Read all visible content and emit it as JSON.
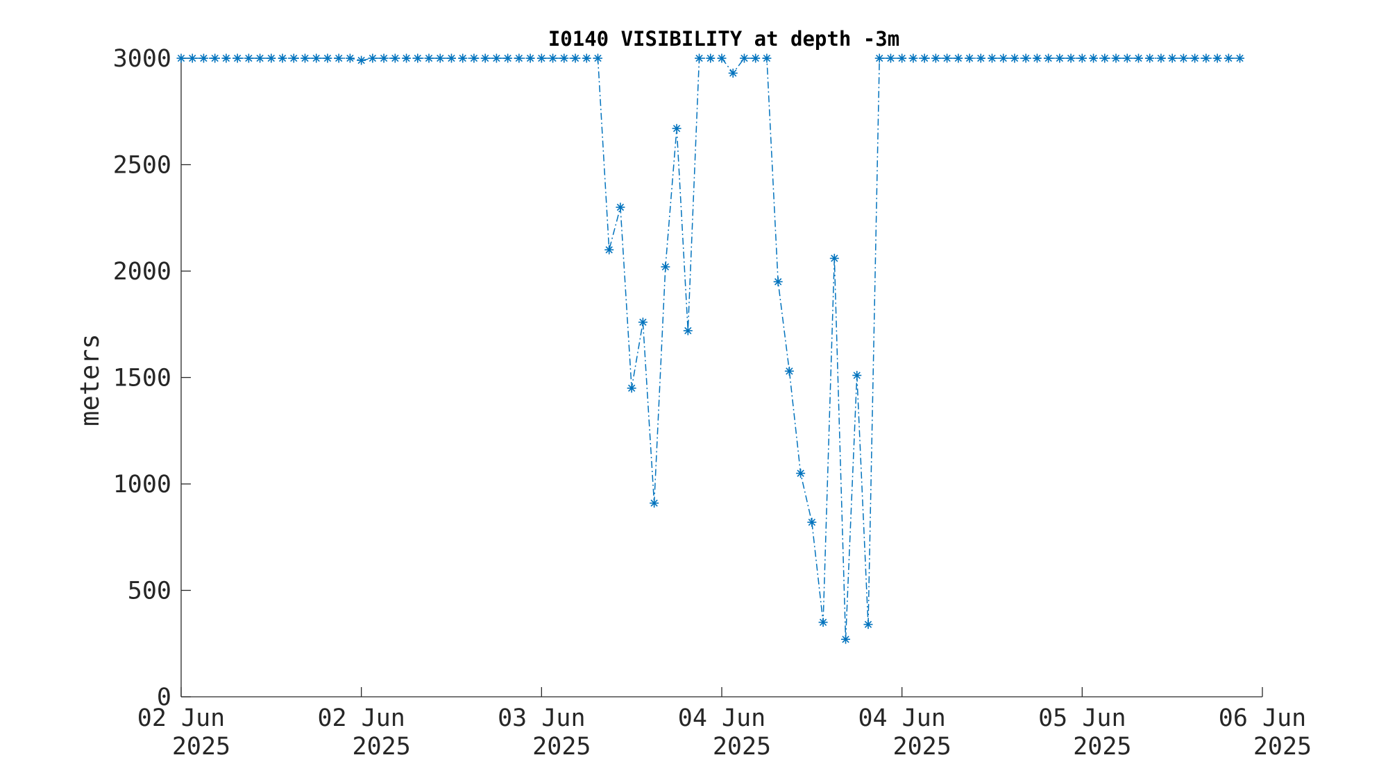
{
  "chart_data": {
    "type": "line",
    "title": "I0140 VISIBILITY at depth -3m",
    "ylabel": "meters",
    "xlabel": "",
    "ylim": [
      0,
      3000
    ],
    "yticks": [
      0,
      500,
      1000,
      1500,
      2000,
      2500,
      3000
    ],
    "ytick_labels": [
      "0",
      "500",
      "1000",
      "1500",
      "2000",
      "2500",
      "3000"
    ],
    "xlim_hours": [
      0,
      72
    ],
    "x_ticks": [
      {
        "at_hours": 0,
        "line1": "02 Jun",
        "line2": "2025"
      },
      {
        "at_hours": 12,
        "line1": "02 Jun",
        "line2": "2025"
      },
      {
        "at_hours": 24,
        "line1": "03 Jun",
        "line2": "2025"
      },
      {
        "at_hours": 36,
        "line1": "04 Jun",
        "line2": "2025"
      },
      {
        "at_hours": 48,
        "line1": "04 Jun",
        "line2": "2025"
      },
      {
        "at_hours": 60,
        "line1": "05 Jun",
        "line2": "2025"
      },
      {
        "at_hours": 72,
        "line1": "06 Jun",
        "line2": "2025"
      }
    ],
    "color": "#0072BD",
    "marker": "asterisk",
    "line_style": "dash-dot",
    "grid": false,
    "series": [
      {
        "values": [
          3000,
          3000,
          3000,
          3000,
          3000,
          3000,
          3000,
          3000,
          3000,
          3000,
          3000,
          3000,
          3000,
          3000,
          3000,
          3000,
          2990,
          3000,
          3000,
          3000,
          3000,
          3000,
          3000,
          3000,
          3000,
          3000,
          3000,
          3000,
          3000,
          3000,
          3000,
          3000,
          3000,
          3000,
          3000,
          3000,
          3000,
          3000,
          2100,
          2300,
          1450,
          1760,
          910,
          2020,
          2670,
          1720,
          3000,
          3000,
          3000,
          2930,
          3000,
          3000,
          3000,
          1950,
          1530,
          1050,
          820,
          350,
          2060,
          270,
          1510,
          340,
          3000,
          3000,
          3000,
          3000,
          3000,
          3000,
          3000,
          3000,
          3000,
          3000,
          3000,
          3000,
          3000,
          3000,
          3000,
          3000,
          3000,
          3000,
          3000,
          3000,
          3000,
          3000,
          3000,
          3000,
          3000,
          3000,
          3000,
          3000,
          3000,
          3000,
          3000,
          3000,
          3000
        ]
      }
    ]
  }
}
